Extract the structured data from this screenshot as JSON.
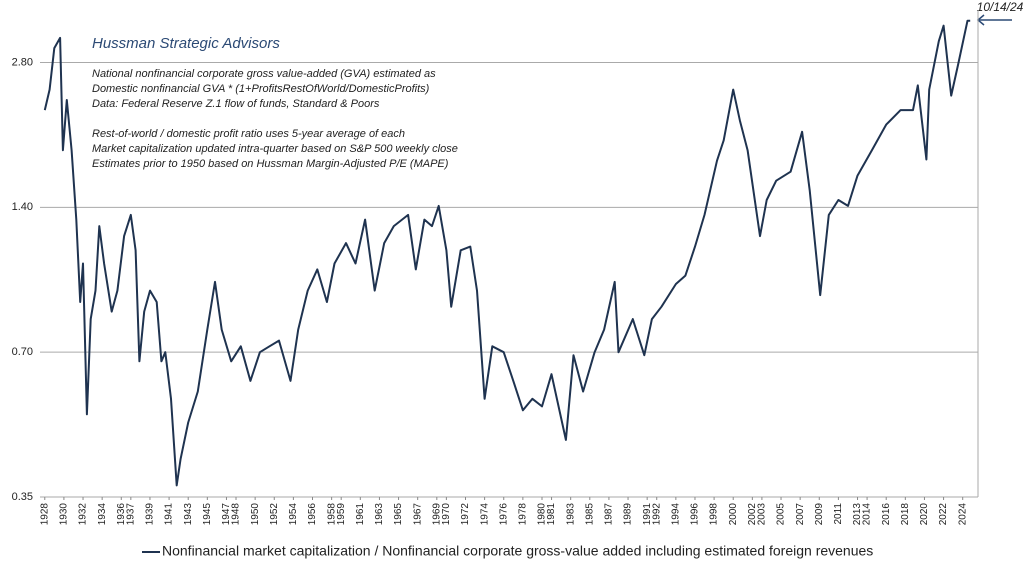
{
  "chart_data": {
    "type": "line",
    "title": "Hussman Strategic Advisors",
    "notes": [
      "National nonfinancial corporate gross value-added (GVA) estimated as",
      "Domestic nonfinancial GVA * (1+ProfitsRestOfWorld/DomesticProfits)",
      "Data: Federal Reserve Z.1 flow of funds, Standard & Poors",
      "Rest-of-world / domestic profit ratio uses 5-year average of each",
      "Market capitalization updated intra-quarter based on S&P 500 weekly close",
      "Estimates prior to 1950 based on Hussman Margin-Adjusted P/E (MAPE)"
    ],
    "annotation": "10/14/24",
    "log_y": true,
    "grid": true,
    "legend": "bottom",
    "xlim": [
      1927.5,
      2025.6
    ],
    "ylim": [
      0.35,
      3.6
    ],
    "yticks": [
      {
        "value": 0.35,
        "label": "0.35"
      },
      {
        "value": 0.7,
        "label": "0.70"
      },
      {
        "value": 1.4,
        "label": "1.40"
      },
      {
        "value": 2.8,
        "label": "2.80"
      }
    ],
    "xticks": [
      1928,
      1930,
      1932,
      1934,
      1936,
      1937,
      1939,
      1941,
      1943,
      1945,
      1947,
      1948,
      1950,
      1952,
      1954,
      1956,
      1958,
      1959,
      1961,
      1963,
      1965,
      1967,
      1969,
      1970,
      1972,
      1974,
      1976,
      1978,
      1980,
      1981,
      1983,
      1985,
      1987,
      1989,
      1991,
      1992,
      1994,
      1996,
      1998,
      2000,
      2002,
      2003,
      2005,
      2007,
      2009,
      2011,
      2013,
      2014,
      2016,
      2018,
      2020,
      2022,
      2024
    ],
    "x": [
      1928.0,
      1928.5,
      1929.0,
      1929.6,
      1929.9,
      1930.3,
      1930.8,
      1931.3,
      1931.7,
      1932.0,
      1932.4,
      1932.8,
      1933.3,
      1933.7,
      1934.2,
      1935.0,
      1935.6,
      1936.3,
      1937.0,
      1937.5,
      1937.9,
      1938.4,
      1939.0,
      1939.7,
      1940.2,
      1940.6,
      1941.2,
      1941.8,
      1942.2,
      1943.0,
      1944.0,
      1945.0,
      1945.8,
      1946.5,
      1947.5,
      1948.5,
      1949.5,
      1950.5,
      1951.5,
      1952.5,
      1953.7,
      1954.5,
      1955.5,
      1956.5,
      1957.5,
      1958.3,
      1959.5,
      1960.5,
      1961.5,
      1962.5,
      1963.5,
      1964.5,
      1966.0,
      1966.8,
      1967.7,
      1968.5,
      1969.2,
      1970.0,
      1970.5,
      1971.5,
      1972.5,
      1973.2,
      1974.0,
      1974.8,
      1976.0,
      1977.0,
      1978.0,
      1979.0,
      1980.0,
      1981.0,
      1982.5,
      1983.3,
      1984.3,
      1985.5,
      1986.5,
      1987.6,
      1988.0,
      1989.5,
      1990.7,
      1991.5,
      1992.5,
      1994.0,
      1995.0,
      1996.0,
      1997.0,
      1998.3,
      1999.0,
      2000.0,
      2000.7,
      2001.5,
      2002.8,
      2003.5,
      2004.5,
      2006.0,
      2007.2,
      2008.0,
      2009.1,
      2010.0,
      2011.0,
      2012.0,
      2013.0,
      2014.5,
      2016.0,
      2017.5,
      2018.8,
      2019.3,
      2020.2,
      2020.5,
      2021.5,
      2022.0,
      2022.8,
      2023.5,
      2024.5,
      2024.78
    ],
    "series": [
      {
        "name": "Nonfinancial market capitalization / Nonfinancial corporate gross-value added including estimated foreign revenues",
        "color": "#1f3350",
        "values": [
          2.23,
          2.46,
          3.0,
          3.15,
          1.84,
          2.34,
          1.84,
          1.32,
          0.89,
          1.07,
          0.52,
          0.82,
          0.94,
          1.28,
          1.07,
          0.85,
          0.94,
          1.22,
          1.35,
          1.14,
          0.67,
          0.85,
          0.94,
          0.89,
          0.67,
          0.7,
          0.56,
          0.37,
          0.42,
          0.5,
          0.58,
          0.78,
          0.98,
          0.78,
          0.67,
          0.72,
          0.61,
          0.7,
          0.72,
          0.74,
          0.61,
          0.78,
          0.94,
          1.04,
          0.89,
          1.07,
          1.18,
          1.07,
          1.32,
          0.94,
          1.18,
          1.28,
          1.35,
          1.04,
          1.32,
          1.28,
          1.41,
          1.14,
          0.87,
          1.14,
          1.16,
          0.94,
          0.56,
          0.72,
          0.7,
          0.61,
          0.53,
          0.56,
          0.54,
          0.63,
          0.46,
          0.69,
          0.58,
          0.7,
          0.78,
          0.98,
          0.7,
          0.82,
          0.69,
          0.82,
          0.87,
          0.97,
          1.01,
          1.16,
          1.35,
          1.75,
          1.93,
          2.46,
          2.12,
          1.84,
          1.22,
          1.45,
          1.59,
          1.66,
          2.01,
          1.52,
          0.92,
          1.35,
          1.45,
          1.41,
          1.63,
          1.84,
          2.08,
          2.23,
          2.23,
          2.51,
          1.76,
          2.46,
          3.1,
          3.34,
          2.39,
          2.76,
          3.42,
          3.42
        ]
      }
    ]
  }
}
